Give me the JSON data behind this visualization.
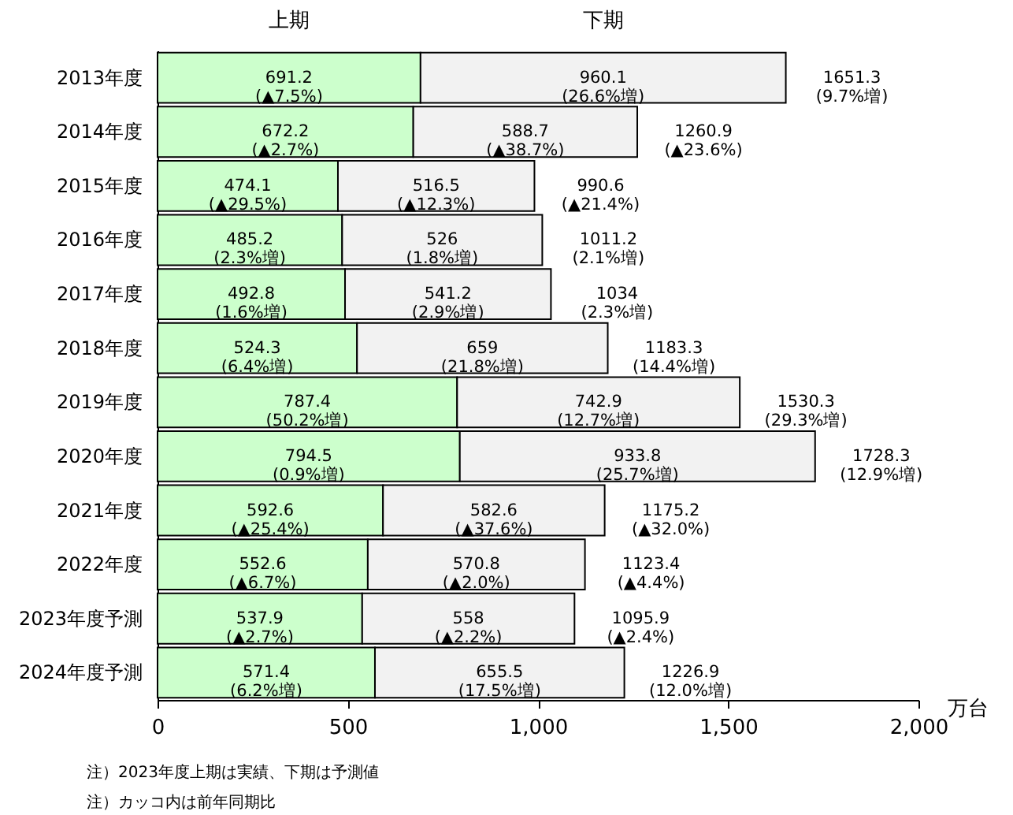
{
  "chart_data": {
    "type": "bar",
    "orientation": "horizontal",
    "stacked": true,
    "categories": [
      "2013年度",
      "2014年度",
      "2015年度",
      "2016年度",
      "2017年度",
      "2018年度",
      "2019年度",
      "2020年度",
      "2021年度",
      "2022年度",
      "2023年度予測",
      "2024年度予測"
    ],
    "series": [
      {
        "name": "上期",
        "color": "#ccffcc",
        "values": [
          691.2,
          672.2,
          474.1,
          485.2,
          492.8,
          524.3,
          787.4,
          794.5,
          592.6,
          552.6,
          537.9,
          571.4
        ],
        "value_labels": [
          "691.2\n(▲7.5%)",
          "672.2\n(▲2.7%)",
          "474.1\n(▲29.5%)",
          "485.2\n(2.3%増)",
          "492.8\n(1.6%増)",
          "524.3\n(6.4%増)",
          "787.4\n(50.2%増)",
          "794.5\n(0.9%増)",
          "592.6\n(▲25.4%)",
          "552.6\n(▲6.7%)",
          "537.9\n(▲2.7%)",
          "571.4\n(6.2%増)"
        ]
      },
      {
        "name": "下期",
        "color": "#f2f2f2",
        "values": [
          960.1,
          588.7,
          516.5,
          526,
          541.2,
          659,
          742.9,
          933.8,
          582.6,
          570.8,
          558,
          655.5
        ],
        "value_labels": [
          "960.1\n(26.6%増)",
          "588.7\n(▲38.7%)",
          "516.5\n(▲12.3%)",
          "526\n(1.8%増)",
          "541.2\n(2.9%増)",
          "659\n(21.8%増)",
          "742.9\n(12.7%増)",
          "933.8\n(25.7%増)",
          "582.6\n(▲37.6%)",
          "570.8\n(▲2.0%)",
          "558\n(▲2.2%)",
          "655.5\n(17.5%増)"
        ]
      }
    ],
    "totals": [
      "1651.3\n(9.7%増)",
      "1260.9\n(▲23.6%)",
      "990.6\n(▲21.4%)",
      "1011.2\n(2.1%増)",
      "1034\n(2.3%増)",
      "1183.3\n(14.4%増)",
      "1530.3\n(29.3%増)",
      "1728.3\n(12.9%増)",
      "1175.2\n(▲32.0%)",
      "1123.4\n(▲4.4%)",
      "1095.9\n(▲2.4%)",
      "1226.9\n(12.0%増)"
    ],
    "xlabel": "万台",
    "xlim": [
      0,
      2000
    ],
    "xticks": [
      0,
      500,
      {
        "value": 1000,
        "label": "1,000"
      },
      {
        "value": 1500,
        "label": "1,500"
      },
      {
        "value": 2000,
        "label": "2,000"
      }
    ],
    "legend": false,
    "annotations": [
      "注）2023年度上期は実績、下期は予測値",
      "注）カッコ内は前年同期比"
    ]
  }
}
